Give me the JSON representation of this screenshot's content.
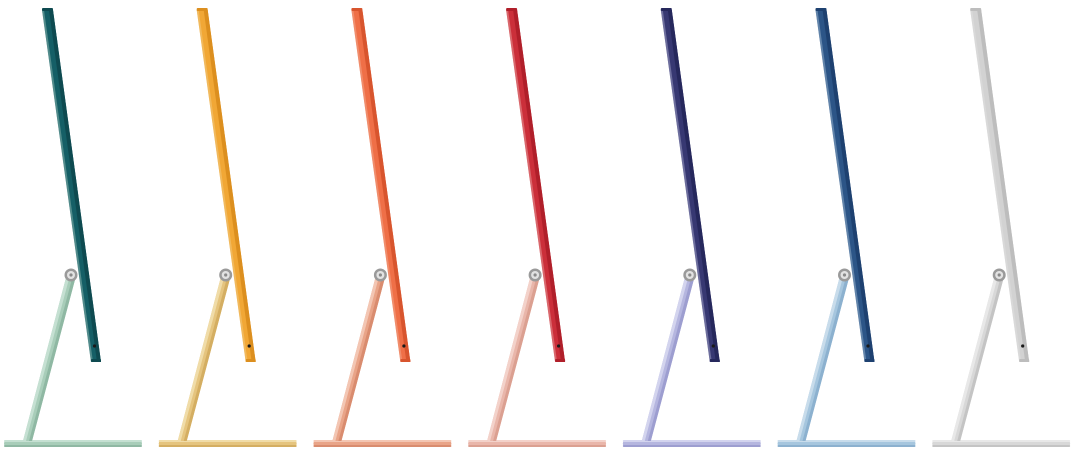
{
  "imacs": [
    {
      "color_name": "green",
      "body": "#155f66",
      "body_dark": "#0e4a50",
      "stand": "#a8cdb9",
      "stand_dark": "#8fb8a3",
      "edge": "#c5e0d2"
    },
    {
      "color_name": "yellow",
      "body": "#f1a735",
      "body_dark": "#dc8f1f",
      "stand": "#e5c47e",
      "stand_dark": "#d4ae62",
      "edge": "#f0dca8"
    },
    {
      "color_name": "orange",
      "body": "#ef6f47",
      "body_dark": "#d8552e",
      "stand": "#e9a488",
      "stand_dark": "#d98c6f",
      "edge": "#f3c6b3"
    },
    {
      "color_name": "pink",
      "body": "#cb2f3a",
      "body_dark": "#b01f2a",
      "stand": "#e9b6aa",
      "stand_dark": "#dba091",
      "edge": "#f3d2ca"
    },
    {
      "color_name": "purple",
      "body": "#373872",
      "body_dark": "#26285c",
      "stand": "#b5b6df",
      "stand_dark": "#9d9ed0",
      "edge": "#d3d4ee"
    },
    {
      "color_name": "blue",
      "body": "#2c5587",
      "body_dark": "#1e4170",
      "stand": "#a6c6de",
      "stand_dark": "#8cb1cf",
      "edge": "#c8dceb"
    },
    {
      "color_name": "silver",
      "body": "#d2d2d2",
      "body_dark": "#bdbdbd",
      "stand": "#d8d8d8",
      "stand_dark": "#c4c4c4",
      "edge": "#e8e8e8"
    }
  ]
}
